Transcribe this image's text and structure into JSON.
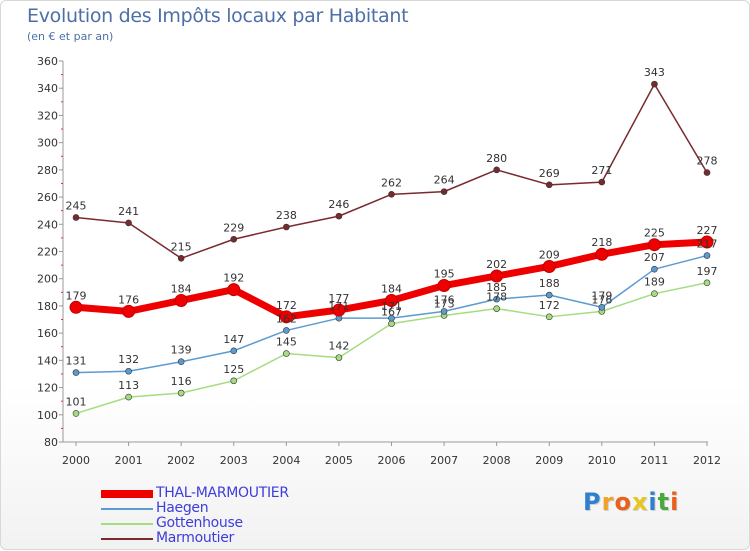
{
  "header": {
    "title": "Evolution des Impôts locaux par Habitant",
    "subtitle": "(en € et par an)"
  },
  "logo": {
    "text": "Proxiti",
    "letter_colors": [
      "#2f7fd1",
      "#f2a12b",
      "#e8601c",
      "#e6c61f",
      "#2f7fd1",
      "#4aa83f",
      "#e8601c"
    ]
  },
  "chart_data": {
    "type": "line",
    "x": [
      "2000",
      "2001",
      "2002",
      "2003",
      "2004",
      "2005",
      "2006",
      "2007",
      "2008",
      "2009",
      "2010",
      "2011",
      "2012"
    ],
    "ylim": [
      80,
      360
    ],
    "yticks": [
      80,
      100,
      120,
      140,
      160,
      180,
      200,
      220,
      240,
      260,
      280,
      300,
      320,
      340,
      360
    ],
    "grid": false,
    "legend_position": "bottom-left",
    "series": [
      {
        "name": "THAL-MARMOUTIER",
        "color": "#ee0000",
        "values": [
          179,
          176,
          184,
          192,
          172,
          177,
          184,
          195,
          202,
          209,
          218,
          225,
          227
        ],
        "labels": [
          "179",
          "176",
          "184",
          "192",
          "172",
          "177",
          "184",
          "195",
          "202",
          "209",
          "218",
          "225",
          "227"
        ]
      },
      {
        "name": "Haegen",
        "color": "#5b9bd0",
        "values": [
          131,
          132,
          139,
          147,
          162,
          171,
          171,
          176,
          185,
          188,
          179,
          207,
          217
        ],
        "labels": [
          "131",
          "132",
          "139",
          "147",
          "162",
          "171",
          "171",
          "176",
          "185",
          "188",
          "179",
          "207",
          "217"
        ]
      },
      {
        "name": "Gottenhouse",
        "color": "#a6dc80",
        "values": [
          101,
          113,
          116,
          125,
          145,
          142,
          167,
          173,
          178,
          172,
          176,
          189,
          197
        ],
        "labels": [
          "101",
          "113",
          "116",
          "125",
          "145",
          "142",
          "167",
          "173",
          "178",
          "172",
          "176",
          "189",
          "197"
        ]
      },
      {
        "name": "Marmoutier",
        "color": "#7a2a2e",
        "values": [
          245,
          241,
          215,
          229,
          238,
          246,
          262,
          264,
          280,
          269,
          271,
          343,
          278
        ],
        "labels": [
          "245",
          "241",
          "215",
          "229",
          "238",
          "246",
          "262",
          "264",
          "280",
          "269",
          "271",
          "343",
          "278"
        ]
      }
    ]
  }
}
